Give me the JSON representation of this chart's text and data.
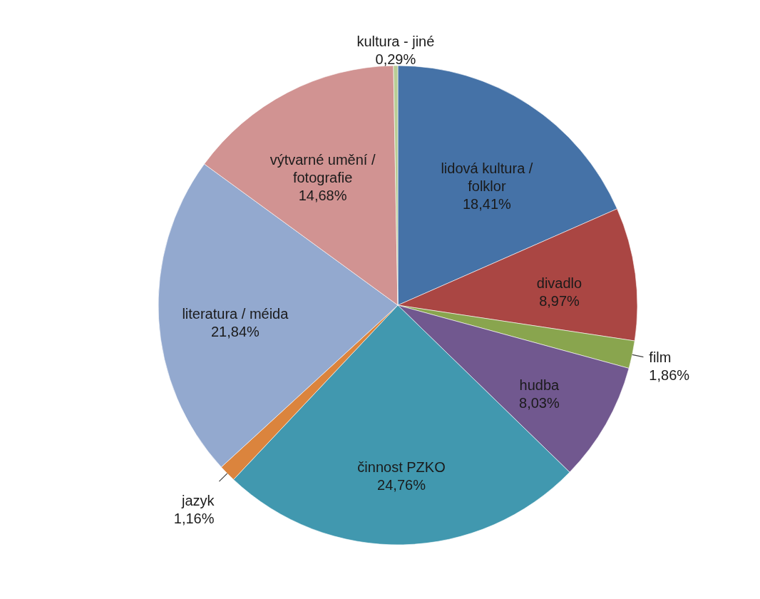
{
  "chart_data": {
    "type": "pie",
    "categories": [
      "lidová kultura / folklor",
      "divadlo",
      "film",
      "hudba",
      "činnost PZKO",
      "jazyk",
      "literatura / méida",
      "výtvarné umění / fotografie",
      "kultura - jiné"
    ],
    "values": [
      18.41,
      8.97,
      1.86,
      8.03,
      24.76,
      1.16,
      21.84,
      14.68,
      0.29
    ],
    "colors": [
      "#4572a7",
      "#aa4643",
      "#89a54e",
      "#71588f",
      "#4198af",
      "#db843d",
      "#93a9cf",
      "#d19392",
      "#b9cd96"
    ],
    "value_labels": [
      "18,41%",
      "8,97%",
      "1,86%",
      "8,03%",
      "24,76%",
      "1,16%",
      "21,84%",
      "14,68%",
      "0,29%"
    ]
  }
}
